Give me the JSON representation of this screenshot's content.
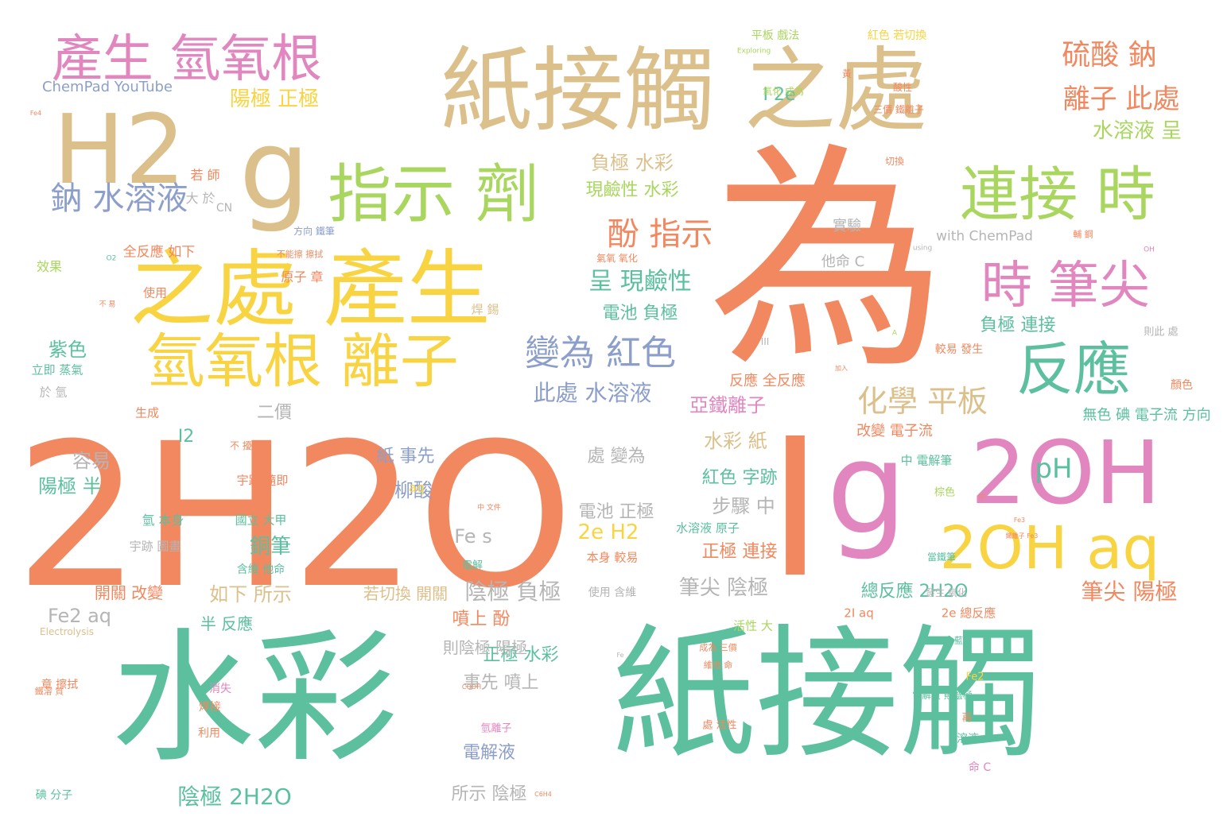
{
  "palette": {
    "orange": "#f2885f",
    "teal": "#5cc09f",
    "tan": "#dcc08c",
    "yellow": "#f9d442",
    "green": "#a9d65e",
    "pink": "#e286bf",
    "blue": "#8c9fca",
    "gray": "#b5b5b5"
  },
  "words": [
    {
      "text": "為",
      "color": "orange"
    },
    {
      "text": "2H2O",
      "color": "orange"
    },
    {
      "text": "I",
      "color": "orange"
    },
    {
      "text": "水彩",
      "color": "teal"
    },
    {
      "text": "紙接觸",
      "color": "teal"
    },
    {
      "text": "紙接觸 之處",
      "color": "tan"
    },
    {
      "text": "H2",
      "color": "tan"
    },
    {
      "text": "g",
      "color": "tan"
    },
    {
      "text": "之處 產生",
      "color": "yellow"
    },
    {
      "text": "產生 氫氧根",
      "color": "pink"
    },
    {
      "text": "指示 劑",
      "color": "green"
    },
    {
      "text": "連接 時",
      "color": "green"
    },
    {
      "text": "氫氧根 離子",
      "color": "yellow"
    },
    {
      "text": "g",
      "color": "pink"
    },
    {
      "text": "2OH",
      "color": "pink"
    },
    {
      "text": "2OH aq",
      "color": "yellow"
    },
    {
      "text": "反應",
      "color": "teal"
    },
    {
      "text": "時 筆尖",
      "color": "pink"
    },
    {
      "text": "變為 紅色",
      "color": "blue"
    },
    {
      "text": "鈉 水溶液",
      "color": "blue"
    },
    {
      "text": "硫酸 鈉",
      "color": "orange"
    },
    {
      "text": "離子 此處",
      "color": "orange"
    },
    {
      "text": "化學 平板",
      "color": "tan"
    },
    {
      "text": "酚 指示",
      "color": "orange"
    },
    {
      "text": "呈 現鹼性",
      "color": "teal"
    },
    {
      "text": "水溶液 呈",
      "color": "green"
    },
    {
      "text": "此處 水溶液",
      "color": "blue"
    },
    {
      "text": "陽極 正極",
      "color": "yellow"
    },
    {
      "text": "負極 水彩",
      "color": "tan"
    },
    {
      "text": "現鹼性 水彩",
      "color": "green"
    },
    {
      "text": "電池 負極",
      "color": "teal"
    },
    {
      "text": "亞鐵離子",
      "color": "pink"
    },
    {
      "text": "陰極 負極",
      "color": "gray"
    },
    {
      "text": "筆尖 陰極",
      "color": "gray"
    },
    {
      "text": "筆尖 陽極",
      "color": "orange"
    },
    {
      "text": "陰極 2H2O",
      "color": "teal"
    },
    {
      "text": "pH",
      "color": "teal"
    },
    {
      "text": "2e H2",
      "color": "yellow"
    },
    {
      "text": "Fe s",
      "color": "gray"
    },
    {
      "text": "銅筆",
      "color": "teal"
    },
    {
      "text": "柳酸",
      "color": "blue"
    },
    {
      "text": "如下 所示",
      "color": "tan"
    },
    {
      "text": "Fe2 aq",
      "color": "gray"
    },
    {
      "text": "ChemPad YouTube",
      "color": "blue"
    },
    {
      "text": "I 2e",
      "color": "teal"
    },
    {
      "text": "總反應 2H2O",
      "color": "teal"
    },
    {
      "text": "紫色",
      "color": "teal"
    },
    {
      "text": "水彩 紙",
      "color": "tan"
    },
    {
      "text": "容易",
      "color": "gray"
    },
    {
      "text": "陽極 半",
      "color": "teal"
    },
    {
      "text": "紙 事先",
      "color": "blue"
    },
    {
      "text": "步驟 中",
      "color": "gray"
    },
    {
      "text": "噴上 酚",
      "color": "orange"
    },
    {
      "text": "正極 水彩",
      "color": "teal"
    },
    {
      "text": "事先 噴上",
      "color": "gray"
    },
    {
      "text": "電解液",
      "color": "blue"
    },
    {
      "text": "所示 陰極",
      "color": "gray"
    },
    {
      "text": "則陰極 陽極",
      "color": "gray"
    },
    {
      "text": "二價",
      "color": "gray"
    },
    {
      "text": "I2",
      "color": "teal"
    },
    {
      "text": "處 變為",
      "color": "gray"
    },
    {
      "text": "電池 正極",
      "color": "gray"
    },
    {
      "text": "紅色 字跡",
      "color": "teal"
    },
    {
      "text": "正極 連接",
      "color": "orange"
    },
    {
      "text": "負極 連接",
      "color": "teal"
    },
    {
      "text": "半 反應",
      "color": "teal"
    },
    {
      "text": "開關 改變",
      "color": "orange"
    },
    {
      "text": "若切換 開關",
      "color": "tan"
    },
    {
      "text": "實驗",
      "color": "gray"
    },
    {
      "text": "他命 C",
      "color": "gray"
    },
    {
      "text": "反應 全反應",
      "color": "orange"
    },
    {
      "text": "改變 電子流",
      "color": "orange"
    },
    {
      "text": "無色 碘 電子流 方向",
      "color": "teal"
    },
    {
      "text": "with ChemPad",
      "color": "gray"
    },
    {
      "text": "全反應 如下",
      "color": "orange"
    },
    {
      "text": "大 於",
      "color": "gray"
    },
    {
      "text": "若 師",
      "color": "orange"
    },
    {
      "text": "CN",
      "color": "gray"
    },
    {
      "text": "效果",
      "color": "green"
    },
    {
      "text": "使用",
      "color": "orange"
    },
    {
      "text": "焊 錫",
      "color": "tan"
    },
    {
      "text": "原子 章",
      "color": "orange"
    },
    {
      "text": "立即 蒸氣",
      "color": "teal"
    },
    {
      "text": "於 氫",
      "color": "gray"
    },
    {
      "text": "生成",
      "color": "orange"
    },
    {
      "text": "aq",
      "color": "yellow"
    },
    {
      "text": "氫 本身",
      "color": "teal"
    },
    {
      "text": "宇跡 圖畫",
      "color": "gray"
    },
    {
      "text": "宇跡 隨即",
      "color": "orange"
    },
    {
      "text": "國立 大甲",
      "color": "teal"
    },
    {
      "text": "含維 他命",
      "color": "teal"
    },
    {
      "text": "水溶液 原子",
      "color": "teal"
    },
    {
      "text": "本身 較易",
      "color": "orange"
    },
    {
      "text": "活性 大",
      "color": "green"
    },
    {
      "text": "2I aq",
      "color": "orange"
    },
    {
      "text": "2e 總反應",
      "color": "orange"
    },
    {
      "text": "中 電解筆",
      "color": "teal"
    },
    {
      "text": "平板 戲法",
      "color": "green"
    },
    {
      "text": "紅色 若切換",
      "color": "yellow"
    },
    {
      "text": "顏色",
      "color": "orange"
    },
    {
      "text": "較易 發生",
      "color": "orange"
    },
    {
      "text": "則此 處",
      "color": "gray"
    },
    {
      "text": "方向 鐵筆",
      "color": "blue"
    },
    {
      "text": "消失",
      "color": "pink"
    },
    {
      "text": "焊接",
      "color": "orange"
    },
    {
      "text": "利用",
      "color": "orange"
    },
    {
      "text": "碘 分子",
      "color": "teal"
    },
    {
      "text": "章 擦拭",
      "color": "orange"
    },
    {
      "text": "使用 含維",
      "color": "gray"
    },
    {
      "text": "氫離子",
      "color": "pink"
    },
    {
      "text": "溶液",
      "color": "teal"
    },
    {
      "text": "命 C",
      "color": "pink"
    },
    {
      "text": "Electrolysis",
      "color": "tan"
    },
    {
      "text": "Fe2",
      "color": "yellow"
    },
    {
      "text": "再",
      "color": "orange"
    },
    {
      "text": "電解",
      "color": "teal"
    },
    {
      "text": "氣氧 氧化",
      "color": "orange"
    },
    {
      "text": "Exploring",
      "color": "green"
    },
    {
      "text": "氧化 成為",
      "color": "green"
    },
    {
      "text": "三價 鐵離子",
      "color": "orange"
    },
    {
      "text": "黃",
      "color": "orange"
    },
    {
      "text": "酸性",
      "color": "orange"
    },
    {
      "text": "切換",
      "color": "orange"
    },
    {
      "text": "棕色",
      "color": "green"
    },
    {
      "text": "發生 氧化",
      "color": "gray"
    },
    {
      "text": "當鐵筆",
      "color": "teal"
    },
    {
      "text": "電解質 則陰極",
      "color": "teal"
    },
    {
      "text": "處 活性",
      "color": "orange"
    },
    {
      "text": "成為 三價",
      "color": "orange"
    },
    {
      "text": "維他 命",
      "color": "orange"
    },
    {
      "text": "中 文件",
      "color": "orange"
    },
    {
      "text": "中",
      "color": "orange"
    },
    {
      "text": "不 擾",
      "color": "orange"
    },
    {
      "text": "不能擦 擦拭",
      "color": "orange"
    },
    {
      "text": "不 易",
      "color": "orange"
    },
    {
      "text": "using",
      "color": "gray"
    },
    {
      "text": "OH",
      "color": "pink"
    },
    {
      "text": "O2",
      "color": "teal"
    },
    {
      "text": "A",
      "color": "green"
    },
    {
      "text": "COOH",
      "color": "orange"
    },
    {
      "text": "C6H4",
      "color": "orange"
    },
    {
      "text": "Fe",
      "color": "gray"
    },
    {
      "text": "Fe3",
      "color": "orange"
    },
    {
      "text": "Fe4",
      "color": "orange"
    },
    {
      "text": "鐵離子 Fe3",
      "color": "orange"
    },
    {
      "text": "藍色",
      "color": "teal"
    },
    {
      "text": "輔 鋼",
      "color": "orange"
    },
    {
      "text": "加入",
      "color": "orange"
    },
    {
      "text": "鐵溶 質",
      "color": "orange"
    },
    {
      "text": "III",
      "color": "gray"
    }
  ]
}
